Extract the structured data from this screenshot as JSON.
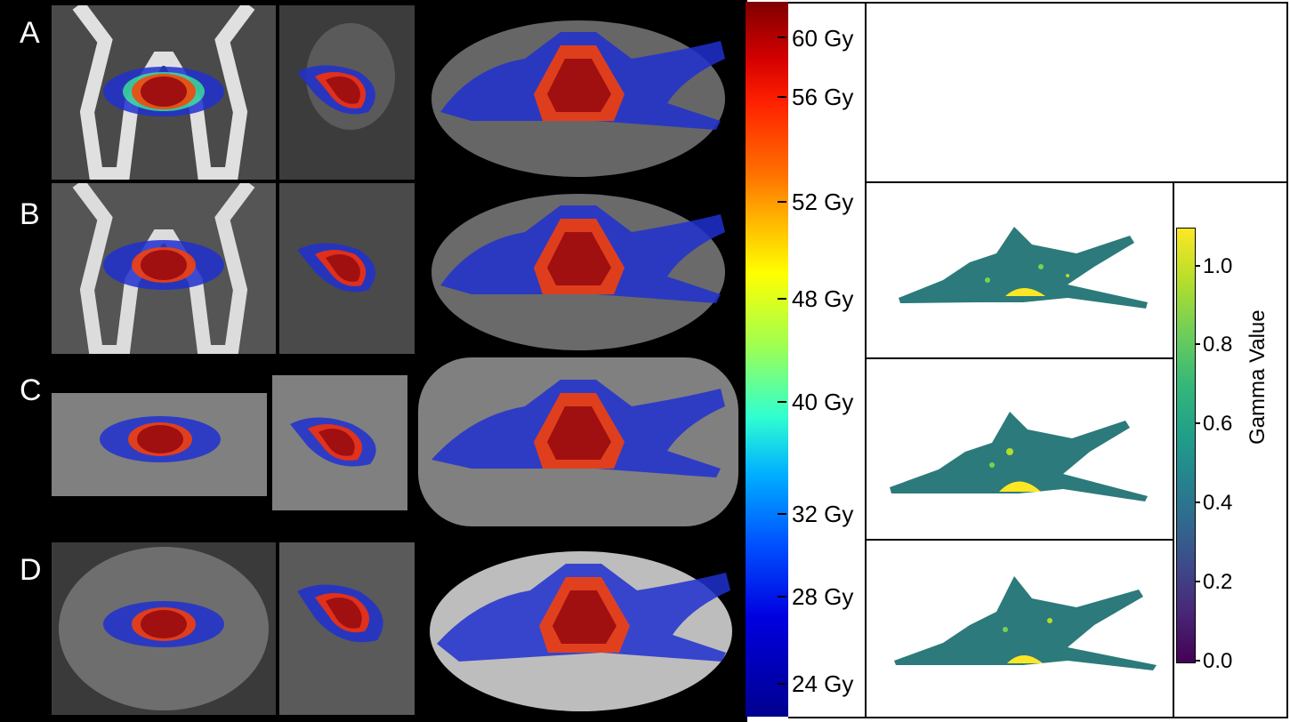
{
  "rows": [
    "A",
    "B",
    "C",
    "D"
  ],
  "dose_colorbar": {
    "labels": [
      "60 Gy",
      "56 Gy",
      "52 Gy",
      "48 Gy",
      "40 Gy",
      "32 Gy",
      "28 Gy",
      "24 Gy"
    ]
  },
  "gamma_colorbar": {
    "title": "Gamma Value",
    "ticks": [
      "1.0",
      "0.8",
      "0.6",
      "0.4",
      "0.2",
      "0.0"
    ]
  }
}
